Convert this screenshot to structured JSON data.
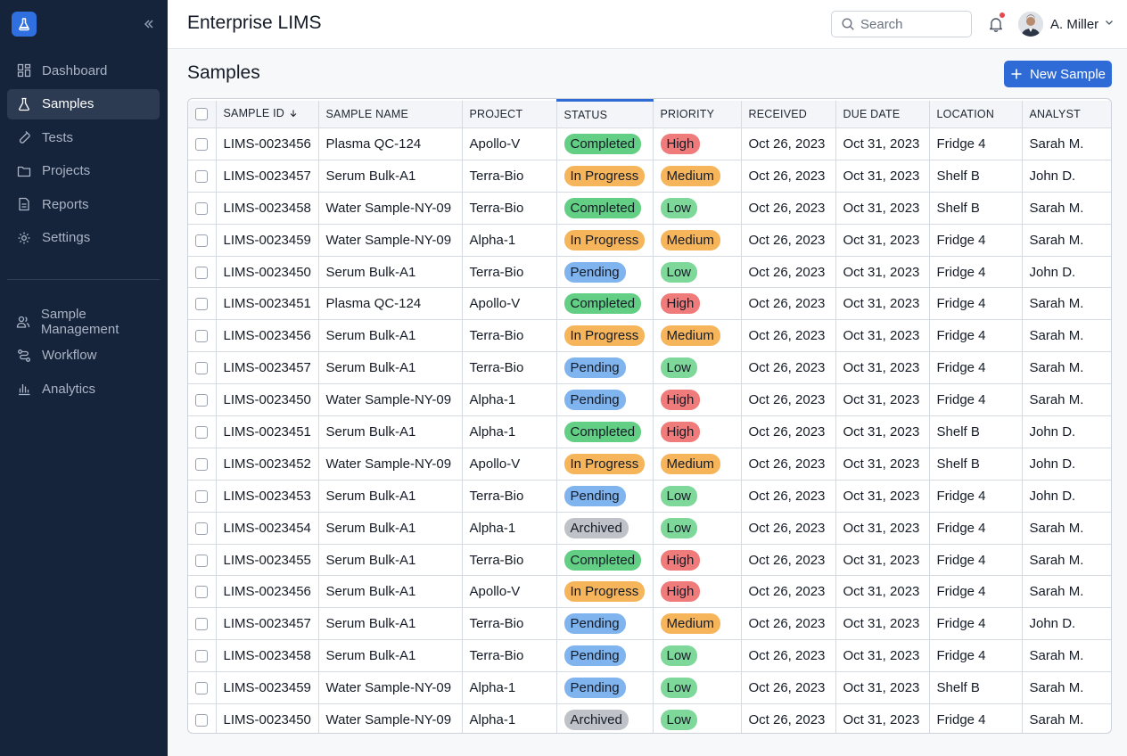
{
  "colors": {
    "sidebar_bg": "#15233b",
    "accent": "#2f6bd6",
    "status": {
      "Completed": "#63cf84",
      "In Progress": "#f6b55b",
      "Pending": "#7fb4ee",
      "Archived": "#bfc3c9"
    },
    "priority": {
      "High": "#f07b7b",
      "Medium": "#f6b55b",
      "Low": "#7ed89a"
    }
  },
  "sidebar": {
    "logo_icon": "flask-icon",
    "collapse_icon": "double-chevron-left-icon",
    "items": [
      {
        "label": "Dashboard",
        "icon": "dashboard-icon",
        "active": false
      },
      {
        "label": "Samples",
        "icon": "flask-icon",
        "active": true
      },
      {
        "label": "Tests",
        "icon": "test-icon",
        "active": false
      },
      {
        "label": "Projects",
        "icon": "folder-icon",
        "active": false
      },
      {
        "label": "Reports",
        "icon": "report-icon",
        "active": false
      },
      {
        "label": "Settings",
        "icon": "gear-icon",
        "active": false
      }
    ],
    "items2": [
      {
        "label": "Sample Management",
        "icon": "users-icon"
      },
      {
        "label": "Workflow",
        "icon": "workflow-icon"
      },
      {
        "label": "Analytics",
        "icon": "bar-chart-icon"
      }
    ]
  },
  "header": {
    "app_title": "Enterprise LIMS",
    "search_placeholder": "Search",
    "user_name": "A. Miller"
  },
  "main": {
    "page_title": "Samples",
    "new_button_label": "New Sample"
  },
  "table": {
    "columns": [
      "SAMPLE ID",
      "SAMPLE NAME",
      "PROJECT",
      "STATUS",
      "PRIORITY",
      "RECEIVED",
      "DUE DATE",
      "LOCATION",
      "ANALYST"
    ],
    "rows": [
      [
        "LIMS-0023456",
        "Plasma QC-124",
        "Apollo-V",
        "Completed",
        "High",
        "Oct 26, 2023",
        "Oct 31, 2023",
        "Fridge 4",
        "Sarah M."
      ],
      [
        "LIMS-0023457",
        "Serum Bulk-A1",
        "Terra-Bio",
        "In Progress",
        "Medium",
        "Oct 26, 2023",
        "Oct 31, 2023",
        "Shelf B",
        "John D."
      ],
      [
        "LIMS-0023458",
        "Water Sample-NY-09",
        "Terra-Bio",
        "Completed",
        "Low",
        "Oct 26, 2023",
        "Oct 31, 2023",
        "Shelf B",
        "Sarah M."
      ],
      [
        "LIMS-0023459",
        "Water Sample-NY-09",
        "Alpha-1",
        "In Progress",
        "Medium",
        "Oct 26, 2023",
        "Oct 31, 2023",
        "Fridge 4",
        "Sarah M."
      ],
      [
        "LIMS-0023450",
        "Serum Bulk-A1",
        "Terra-Bio",
        "Pending",
        "Low",
        "Oct 26, 2023",
        "Oct 31, 2023",
        "Fridge 4",
        "John D."
      ],
      [
        "LIMS-0023451",
        "Plasma QC-124",
        "Apollo-V",
        "Completed",
        "High",
        "Oct 26, 2023",
        "Oct 31, 2023",
        "Fridge 4",
        "Sarah M."
      ],
      [
        "LIMS-0023456",
        "Serum Bulk-A1",
        "Terra-Bio",
        "In Progress",
        "Medium",
        "Oct 26, 2023",
        "Oct 31, 2023",
        "Fridge 4",
        "Sarah M."
      ],
      [
        "LIMS-0023457",
        "Serum Bulk-A1",
        "Terra-Bio",
        "Pending",
        "Low",
        "Oct 26, 2023",
        "Oct 31, 2023",
        "Fridge 4",
        "Sarah M."
      ],
      [
        "LIMS-0023450",
        "Water Sample-NY-09",
        "Alpha-1",
        "Pending",
        "High",
        "Oct 26, 2023",
        "Oct 31, 2023",
        "Fridge 4",
        "Sarah M."
      ],
      [
        "LIMS-0023451",
        "Serum Bulk-A1",
        "Alpha-1",
        "Completed",
        "High",
        "Oct 26, 2023",
        "Oct 31, 2023",
        "Shelf B",
        "John D."
      ],
      [
        "LIMS-0023452",
        "Water Sample-NY-09",
        "Apollo-V",
        "In Progress",
        "Medium",
        "Oct 26, 2023",
        "Oct 31, 2023",
        "Shelf B",
        "John D."
      ],
      [
        "LIMS-0023453",
        "Serum Bulk-A1",
        "Terra-Bio",
        "Pending",
        "Low",
        "Oct 26, 2023",
        "Oct 31, 2023",
        "Fridge 4",
        "John D."
      ],
      [
        "LIMS-0023454",
        "Serum Bulk-A1",
        "Alpha-1",
        "Archived",
        "Low",
        "Oct 26, 2023",
        "Oct 31, 2023",
        "Fridge 4",
        "Sarah M."
      ],
      [
        "LIMS-0023455",
        "Serum Bulk-A1",
        "Terra-Bio",
        "Completed",
        "High",
        "Oct 26, 2023",
        "Oct 31, 2023",
        "Fridge 4",
        "Sarah M."
      ],
      [
        "LIMS-0023456",
        "Serum Bulk-A1",
        "Apollo-V",
        "In Progress",
        "High",
        "Oct 26, 2023",
        "Oct 31, 2023",
        "Fridge 4",
        "Sarah M."
      ],
      [
        "LIMS-0023457",
        "Serum Bulk-A1",
        "Terra-Bio",
        "Pending",
        "Medium",
        "Oct 26, 2023",
        "Oct 31, 2023",
        "Fridge 4",
        "John D."
      ],
      [
        "LIMS-0023458",
        "Serum Bulk-A1",
        "Terra-Bio",
        "Pending",
        "Low",
        "Oct 26, 2023",
        "Oct 31, 2023",
        "Fridge 4",
        "Sarah M."
      ],
      [
        "LIMS-0023459",
        "Water Sample-NY-09",
        "Alpha-1",
        "Pending",
        "Low",
        "Oct 26, 2023",
        "Oct 31, 2023",
        "Shelf B",
        "Sarah M."
      ],
      [
        "LIMS-0023450",
        "Water Sample-NY-09",
        "Alpha-1",
        "Archived",
        "Low",
        "Oct 26, 2023",
        "Oct 31, 2023",
        "Fridge 4",
        "Sarah M."
      ]
    ]
  }
}
